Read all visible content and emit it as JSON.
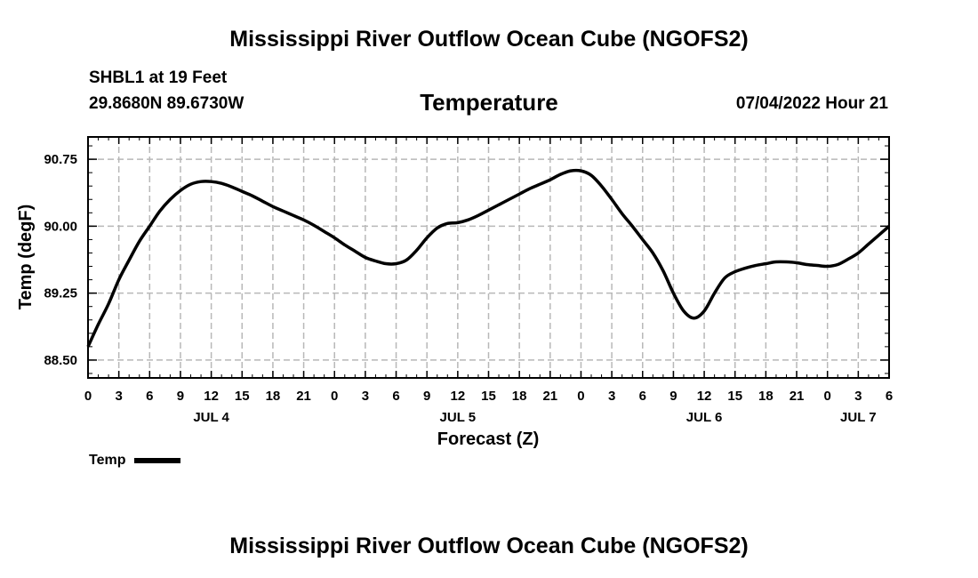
{
  "header": {
    "title": "Mississippi River Outflow Ocean Cube (NGOFS2)",
    "footer_title": "Mississippi River Outflow Ocean Cube (NGOFS2)",
    "station": "SHBL1 at 19 Feet",
    "coords": "29.8680N  89.6730W",
    "datetime": "07/04/2022 Hour 21"
  },
  "legend": {
    "label": "Temp"
  },
  "chart_data": {
    "type": "line",
    "title": "Temperature",
    "xlabel": "Forecast (Z)",
    "ylabel": "Temp (degF)",
    "xlim": [
      0,
      78
    ],
    "ylim": [
      88.3,
      91.0
    ],
    "yticks": [
      {
        "value": 88.5,
        "label": "88.50"
      },
      {
        "value": 89.25,
        "label": "89.25"
      },
      {
        "value": 90.0,
        "label": "90.00"
      },
      {
        "value": 90.75,
        "label": "90.75"
      }
    ],
    "xticks": [
      {
        "value": 0,
        "label": "0"
      },
      {
        "value": 3,
        "label": "3"
      },
      {
        "value": 6,
        "label": "6"
      },
      {
        "value": 9,
        "label": "9"
      },
      {
        "value": 12,
        "label": "12"
      },
      {
        "value": 15,
        "label": "15"
      },
      {
        "value": 18,
        "label": "18"
      },
      {
        "value": 21,
        "label": "21"
      },
      {
        "value": 24,
        "label": "0"
      },
      {
        "value": 27,
        "label": "3"
      },
      {
        "value": 30,
        "label": "6"
      },
      {
        "value": 33,
        "label": "9"
      },
      {
        "value": 36,
        "label": "12"
      },
      {
        "value": 39,
        "label": "15"
      },
      {
        "value": 42,
        "label": "18"
      },
      {
        "value": 45,
        "label": "21"
      },
      {
        "value": 48,
        "label": "0"
      },
      {
        "value": 51,
        "label": "3"
      },
      {
        "value": 54,
        "label": "6"
      },
      {
        "value": 57,
        "label": "9"
      },
      {
        "value": 60,
        "label": "12"
      },
      {
        "value": 63,
        "label": "15"
      },
      {
        "value": 66,
        "label": "18"
      },
      {
        "value": 69,
        "label": "21"
      },
      {
        "value": 72,
        "label": "0"
      },
      {
        "value": 75,
        "label": "3"
      },
      {
        "value": 78,
        "label": "6"
      }
    ],
    "day_labels": [
      {
        "value": 12,
        "label": "JUL 4"
      },
      {
        "value": 36,
        "label": "JUL 5"
      },
      {
        "value": 60,
        "label": "JUL 6"
      },
      {
        "value": 75,
        "label": "JUL 7"
      }
    ],
    "grid": true,
    "series": [
      {
        "name": "Temp",
        "x": [
          0,
          1,
          2,
          3,
          4,
          5,
          6,
          7,
          8,
          9,
          10,
          11,
          12,
          13,
          14,
          15,
          16,
          17,
          18,
          19,
          20,
          21,
          22,
          23,
          24,
          25,
          26,
          27,
          28,
          29,
          30,
          31,
          32,
          33,
          34,
          35,
          36,
          37,
          38,
          39,
          40,
          41,
          42,
          43,
          44,
          45,
          46,
          47,
          48,
          49,
          50,
          51,
          52,
          53,
          54,
          55,
          56,
          57,
          58,
          59,
          60,
          61,
          62,
          63,
          64,
          65,
          66,
          67,
          68,
          69,
          70,
          71,
          72,
          73,
          74,
          75,
          76,
          77,
          78
        ],
        "values": [
          88.65,
          88.9,
          89.13,
          89.4,
          89.62,
          89.83,
          90.0,
          90.17,
          90.3,
          90.4,
          90.47,
          90.5,
          90.5,
          90.48,
          90.44,
          90.39,
          90.34,
          90.28,
          90.22,
          90.17,
          90.12,
          90.07,
          90.01,
          89.94,
          89.87,
          89.79,
          89.72,
          89.65,
          89.61,
          89.58,
          89.58,
          89.62,
          89.73,
          89.87,
          89.98,
          90.03,
          90.04,
          90.07,
          90.12,
          90.18,
          90.24,
          90.3,
          90.36,
          90.42,
          90.47,
          90.52,
          90.58,
          90.62,
          90.62,
          90.57,
          90.45,
          90.3,
          90.14,
          90.0,
          89.85,
          89.7,
          89.5,
          89.25,
          89.05,
          88.97,
          89.05,
          89.25,
          89.42,
          89.49,
          89.53,
          89.56,
          89.58,
          89.6,
          89.6,
          89.59,
          89.57,
          89.56,
          89.55,
          89.57,
          89.63,
          89.7,
          89.8,
          89.9,
          90.0
        ]
      }
    ]
  }
}
